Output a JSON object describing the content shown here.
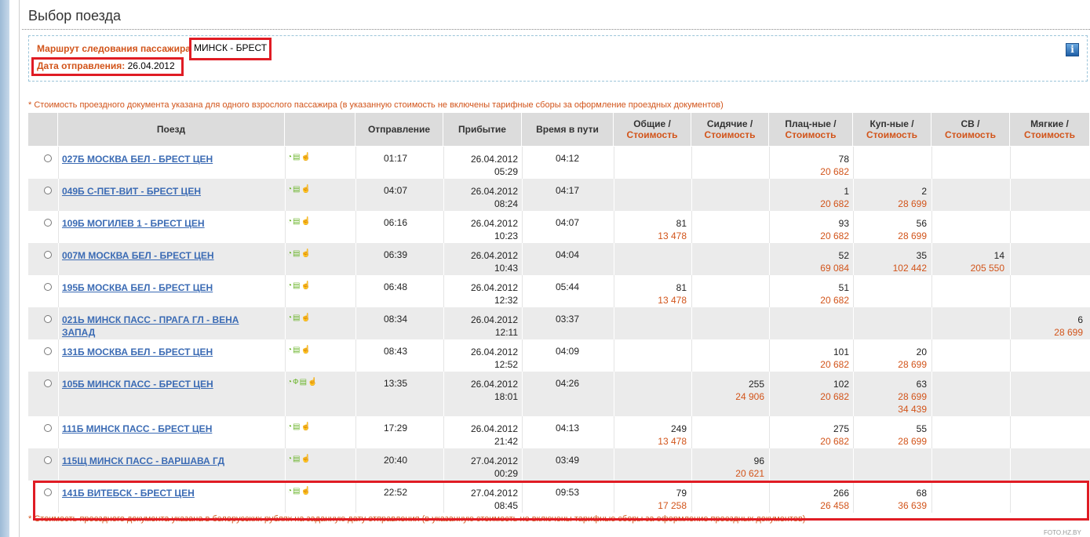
{
  "page": {
    "title": "Выбор поезда"
  },
  "route": {
    "label": "Маршрут следования пассажира",
    "value": "МИНСК - БРЕСТ",
    "date_label": "Дата отправления:",
    "date_value": "26.04.2012"
  },
  "notes": {
    "top": "* Стоимость проездного документа указана для одного взрослого пассажира (в указанную стоимость не включены тарифные сборы за оформление проездных документов)",
    "bottom": "* Стоимость проездного документа указана в белорусских рублях на заданную дату отправления (в указанную стоимость не включены тарифные сборы за оформление проездных документов)"
  },
  "table": {
    "headers": {
      "train": "Поезд",
      "departure": "Отправление",
      "arrival": "Прибытие",
      "duration": "Время в пути",
      "obshchie": "Общие /",
      "sidyachie": "Сидячие /",
      "platskart": "Плац-ные /",
      "kupe": "Куп-ные /",
      "sv": "СВ /",
      "myagkie": "Мягкие /",
      "cost": "Стоимость"
    },
    "rows": [
      {
        "train": "027Б МОСКВА БЕЛ - БРЕСТ ЦЕН",
        "icons": "◔▤☝",
        "dep": "01:17",
        "arr_date": "26.04.2012",
        "arr_time": "05:29",
        "dur": "04:12",
        "obsh": "",
        "obsh_p": "",
        "sid": "",
        "sid_p": "",
        "plac": "78",
        "plac_p": "20 682",
        "kupe": "",
        "kupe_p": "",
        "kupe_p2": "",
        "sv": "",
        "sv_p": "",
        "myag": "",
        "myag_p": ""
      },
      {
        "train": "049Б С-ПЕТ-ВИТ - БРЕСТ ЦЕН",
        "icons": "◔▤☝",
        "dep": "04:07",
        "arr_date": "26.04.2012",
        "arr_time": "08:24",
        "dur": "04:17",
        "obsh": "",
        "obsh_p": "",
        "sid": "",
        "sid_p": "",
        "plac": "1",
        "plac_p": "20 682",
        "kupe": "2",
        "kupe_p": "28 699",
        "kupe_p2": "",
        "sv": "",
        "sv_p": "",
        "myag": "",
        "myag_p": ""
      },
      {
        "train": "109Б МОГИЛЕВ 1 - БРЕСТ ЦЕН",
        "icons": "◔▤☝",
        "dep": "06:16",
        "arr_date": "26.04.2012",
        "arr_time": "10:23",
        "dur": "04:07",
        "obsh": "81",
        "obsh_p": "13 478",
        "sid": "",
        "sid_p": "",
        "plac": "93",
        "plac_p": "20 682",
        "kupe": "56",
        "kupe_p": "28 699",
        "kupe_p2": "",
        "sv": "",
        "sv_p": "",
        "myag": "",
        "myag_p": ""
      },
      {
        "train": "007М МОСКВА БЕЛ - БРЕСТ ЦЕН",
        "icons": "◔▤☝",
        "dep": "06:39",
        "arr_date": "26.04.2012",
        "arr_time": "10:43",
        "dur": "04:04",
        "obsh": "",
        "obsh_p": "",
        "sid": "",
        "sid_p": "",
        "plac": "52",
        "plac_p": "69 084",
        "kupe": "35",
        "kupe_p": "102 442",
        "kupe_p2": "",
        "sv": "14",
        "sv_p": "205 550",
        "myag": "",
        "myag_p": ""
      },
      {
        "train": "195Б МОСКВА БЕЛ - БРЕСТ ЦЕН",
        "icons": "◔▤☝",
        "dep": "06:48",
        "arr_date": "26.04.2012",
        "arr_time": "12:32",
        "dur": "05:44",
        "obsh": "81",
        "obsh_p": "13 478",
        "sid": "",
        "sid_p": "",
        "plac": "51",
        "plac_p": "20 682",
        "kupe": "",
        "kupe_p": "",
        "kupe_p2": "",
        "sv": "",
        "sv_p": "",
        "myag": "",
        "myag_p": ""
      },
      {
        "train": "021Ь МИНСК ПАСС - ПРАГА ГЛ - ВЕНА ЗАПАД",
        "icons": "◔▤☝",
        "dep": "08:34",
        "arr_date": "26.04.2012",
        "arr_time": "12:11",
        "dur": "03:37",
        "obsh": "",
        "obsh_p": "",
        "sid": "",
        "sid_p": "",
        "plac": "",
        "plac_p": "",
        "kupe": "",
        "kupe_p": "",
        "kupe_p2": "",
        "sv": "",
        "sv_p": "",
        "myag": "6",
        "myag_p": "28 699"
      },
      {
        "train": "131Б МОСКВА БЕЛ - БРЕСТ ЦЕН",
        "icons": "◔▤☝",
        "dep": "08:43",
        "arr_date": "26.04.2012",
        "arr_time": "12:52",
        "dur": "04:09",
        "obsh": "",
        "obsh_p": "",
        "sid": "",
        "sid_p": "",
        "plac": "101",
        "plac_p": "20 682",
        "kupe": "20",
        "kupe_p": "28 699",
        "kupe_p2": "",
        "sv": "",
        "sv_p": "",
        "myag": "",
        "myag_p": ""
      },
      {
        "train": "105Б МИНСК ПАСС - БРЕСТ ЦЕН",
        "icons": "◔Ф▤☝",
        "dep": "13:35",
        "arr_date": "26.04.2012",
        "arr_time": "18:01",
        "dur": "04:26",
        "obsh": "",
        "obsh_p": "",
        "sid": "255",
        "sid_p": "24 906",
        "plac": "102",
        "plac_p": "20 682",
        "kupe": "63",
        "kupe_p": "28 699",
        "kupe_p2": "34 439",
        "sv": "",
        "sv_p": "",
        "myag": "",
        "myag_p": ""
      },
      {
        "train": "111Б МИНСК ПАСС - БРЕСТ ЦЕН",
        "icons": "◔▤☝",
        "dep": "17:29",
        "arr_date": "26.04.2012",
        "arr_time": "21:42",
        "dur": "04:13",
        "obsh": "249",
        "obsh_p": "13 478",
        "sid": "",
        "sid_p": "",
        "plac": "275",
        "plac_p": "20 682",
        "kupe": "55",
        "kupe_p": "28 699",
        "kupe_p2": "",
        "sv": "",
        "sv_p": "",
        "myag": "",
        "myag_p": ""
      },
      {
        "train": "115Щ МИНСК ПАСС - ВАРШАВА ГД",
        "icons": "◔▤☝",
        "dep": "20:40",
        "arr_date": "27.04.2012",
        "arr_time": "00:29",
        "dur": "03:49",
        "obsh": "",
        "obsh_p": "",
        "sid": "96",
        "sid_p": "20 621",
        "plac": "",
        "plac_p": "",
        "kupe": "",
        "kupe_p": "",
        "kupe_p2": "",
        "sv": "",
        "sv_p": "",
        "myag": "",
        "myag_p": ""
      },
      {
        "train": "141Б ВИТЕБСК - БРЕСТ ЦЕН",
        "icons": "◔▤☝",
        "dep": "22:52",
        "arr_date": "27.04.2012",
        "arr_time": "08:45",
        "dur": "09:53",
        "obsh": "79",
        "obsh_p": "17 258",
        "sid": "",
        "sid_p": "",
        "plac": "266",
        "plac_p": "26 458",
        "kupe": "68",
        "kupe_p": "36 639",
        "kupe_p2": "",
        "sv": "",
        "sv_p": "",
        "myag": "",
        "myag_p": ""
      }
    ]
  },
  "footer": {
    "mark": "FOTO.HZ.BY"
  },
  "colors": {
    "accent": "#d2541a",
    "link": "#3b6bb4",
    "highlight": "#e01c24",
    "header_bg": "#dcdcdc",
    "row_alt": "#ebebeb"
  }
}
